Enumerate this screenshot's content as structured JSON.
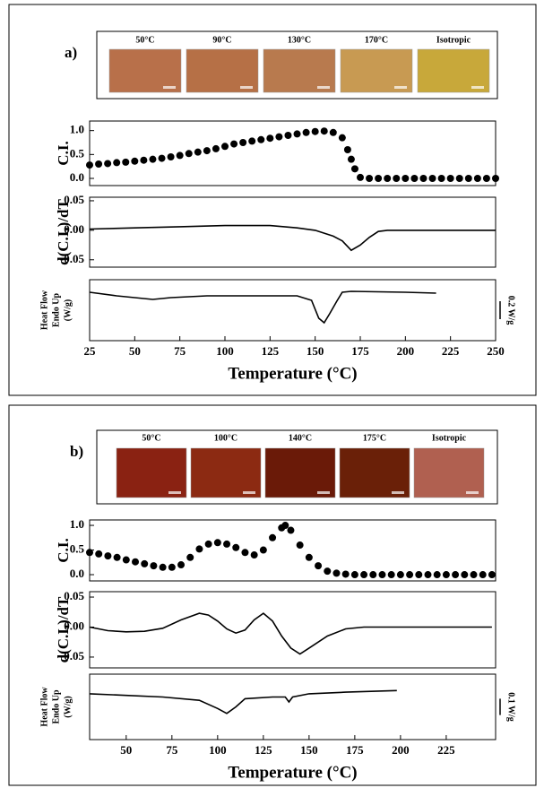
{
  "panels": [
    {
      "label": "a)",
      "micrographs": [
        {
          "label": "50°C",
          "color": "#b8704a"
        },
        {
          "label": "90°C",
          "color": "#b67046"
        },
        {
          "label": "130°C",
          "color": "#b87a4e"
        },
        {
          "label": "170°C",
          "color": "#c89a52"
        },
        {
          "label": "Isotropic",
          "color": "#c8a83a"
        }
      ]
    },
    {
      "label": "b)",
      "micrographs": [
        {
          "label": "50°C",
          "color": "#8a2212"
        },
        {
          "label": "100°C",
          "color": "#8c2a12"
        },
        {
          "label": "140°C",
          "color": "#6a1a08"
        },
        {
          "label": "175°C",
          "color": "#6a2008"
        },
        {
          "label": "Isotropic",
          "color": "#b06050"
        }
      ]
    }
  ],
  "chart_data": [
    {
      "type": "scatter",
      "ylabel": [
        "C.I."
      ],
      "color": "#000000",
      "x": [
        25,
        30,
        35,
        40,
        45,
        50,
        55,
        60,
        65,
        70,
        75,
        80,
        85,
        90,
        95,
        100,
        105,
        110,
        115,
        120,
        125,
        130,
        135,
        140,
        145,
        150,
        155,
        160,
        165,
        168,
        170,
        172,
        175,
        180,
        185,
        190,
        195,
        200,
        205,
        210,
        215,
        220,
        225,
        230,
        235,
        240,
        245,
        250
      ],
      "values": [
        0.28,
        0.3,
        0.31,
        0.33,
        0.34,
        0.36,
        0.38,
        0.4,
        0.42,
        0.45,
        0.48,
        0.52,
        0.55,
        0.58,
        0.62,
        0.67,
        0.72,
        0.75,
        0.78,
        0.81,
        0.84,
        0.87,
        0.9,
        0.93,
        0.96,
        0.98,
        0.99,
        0.96,
        0.85,
        0.6,
        0.4,
        0.2,
        0.02,
        0,
        0,
        0,
        0,
        0,
        0,
        0,
        0,
        0,
        0,
        0,
        0,
        0,
        0,
        0
      ],
      "xlim": [
        25,
        250
      ],
      "ylim": [
        -0.15,
        1.2
      ],
      "yticks": [
        {
          "value": 0,
          "label": "0.0"
        },
        {
          "value": 0.5,
          "label": "0.5"
        },
        {
          "value": 1,
          "label": "1.0"
        }
      ]
    },
    {
      "type": "line",
      "ylabel": [
        "d(C.I.)/dT"
      ],
      "color": "#000000",
      "x": [
        25,
        50,
        75,
        100,
        125,
        140,
        150,
        160,
        165,
        170,
        175,
        180,
        185,
        190,
        200,
        225,
        250
      ],
      "values": [
        0.002,
        0.004,
        0.006,
        0.008,
        0.008,
        0.004,
        0,
        -0.01,
        -0.018,
        -0.034,
        -0.025,
        -0.012,
        -0.002,
        0,
        0,
        0,
        0
      ],
      "xlim": [
        25,
        250
      ],
      "ylim": [
        -0.0625,
        0.056
      ],
      "yticks": [
        {
          "value": -0.05,
          "label": "-0.05"
        },
        {
          "value": 0,
          "label": "0.00"
        },
        {
          "value": 0.05,
          "label": "0.05"
        }
      ]
    },
    {
      "type": "line",
      "ylabel": [
        "Heat Flow",
        "Endo Up",
        "(W/g)"
      ],
      "color": "#000000",
      "x": [
        25,
        40,
        60,
        70,
        90,
        120,
        140,
        148,
        152,
        155,
        158,
        162,
        165,
        170,
        200,
        217
      ],
      "values": [
        0.04,
        0,
        -0.04,
        -0.02,
        0,
        0,
        0,
        -0.05,
        -0.25,
        -0.3,
        -0.2,
        -0.06,
        0.04,
        0.05,
        0.04,
        0.03
      ],
      "xlim": [
        25,
        250
      ],
      "ylim": [
        -0.5,
        0.18
      ],
      "scale_bar": {
        "value": 0.2,
        "label": "0.2 W/g"
      },
      "xticks": [
        25,
        50,
        75,
        100,
        125,
        150,
        175,
        200,
        225,
        250
      ],
      "xlabel": "Temperature (°C)"
    },
    {
      "type": "scatter",
      "ylabel": [
        "C.I."
      ],
      "color": "#000000",
      "x": [
        30,
        35,
        40,
        45,
        50,
        55,
        60,
        65,
        70,
        75,
        80,
        85,
        90,
        95,
        100,
        105,
        110,
        115,
        120,
        125,
        130,
        135,
        137,
        140,
        145,
        150,
        155,
        160,
        165,
        170,
        175,
        180,
        185,
        190,
        195,
        200,
        205,
        210,
        215,
        220,
        225,
        230,
        235,
        240,
        245,
        250
      ],
      "values": [
        0.45,
        0.42,
        0.38,
        0.35,
        0.3,
        0.26,
        0.22,
        0.18,
        0.15,
        0.15,
        0.2,
        0.35,
        0.52,
        0.62,
        0.65,
        0.62,
        0.55,
        0.45,
        0.4,
        0.5,
        0.75,
        0.95,
        1,
        0.9,
        0.6,
        0.35,
        0.18,
        0.07,
        0.03,
        0.01,
        0,
        0,
        0,
        0,
        0,
        0,
        0,
        0,
        0,
        0,
        0,
        0,
        0,
        0,
        0,
        0
      ],
      "xlim": [
        30,
        252
      ],
      "ylim": [
        -0.127,
        1.11
      ],
      "yticks": [
        {
          "value": 0,
          "label": "0.0"
        },
        {
          "value": 0.5,
          "label": "0.5"
        },
        {
          "value": 1,
          "label": "1.0"
        }
      ]
    },
    {
      "type": "line",
      "ylabel": [
        "d(C.I.)/dT"
      ],
      "color": "#000000",
      "x": [
        30,
        40,
        50,
        60,
        70,
        80,
        90,
        95,
        100,
        105,
        110,
        115,
        120,
        125,
        130,
        135,
        140,
        145,
        150,
        160,
        170,
        180,
        200,
        225,
        250
      ],
      "values": [
        0,
        -0.006,
        -0.008,
        -0.007,
        -0.002,
        0.012,
        0.023,
        0.02,
        0.01,
        -0.003,
        -0.01,
        -0.005,
        0.012,
        0.023,
        0.01,
        -0.015,
        -0.035,
        -0.045,
        -0.035,
        -0.015,
        -0.003,
        0,
        0,
        0,
        0
      ],
      "xlim": [
        30,
        252
      ],
      "ylim": [
        -0.068,
        0.059
      ],
      "yticks": [
        {
          "value": -0.05,
          "label": "-0.05"
        },
        {
          "value": 0,
          "label": "0.00"
        },
        {
          "value": 0.05,
          "label": "0.05"
        }
      ]
    },
    {
      "type": "line",
      "ylabel": [
        "Heat Flow",
        "Endo Up",
        "(W/g)"
      ],
      "color": "#000000",
      "x": [
        30,
        50,
        70,
        90,
        100,
        105,
        110,
        115,
        130,
        137,
        139,
        141,
        150,
        170,
        198
      ],
      "values": [
        0,
        -0.01,
        -0.02,
        -0.04,
        -0.09,
        -0.12,
        -0.08,
        -0.03,
        -0.02,
        -0.02,
        -0.05,
        -0.02,
        0,
        0.01,
        0.02
      ],
      "xlim": [
        30,
        252
      ],
      "ylim": [
        -0.28,
        0.12
      ],
      "scale_bar": {
        "value": 0.1,
        "label": "0.1 W/g"
      },
      "xticks": [
        50,
        75,
        100,
        125,
        150,
        175,
        200,
        225
      ],
      "xlabel": "Temperature (°C)"
    }
  ]
}
